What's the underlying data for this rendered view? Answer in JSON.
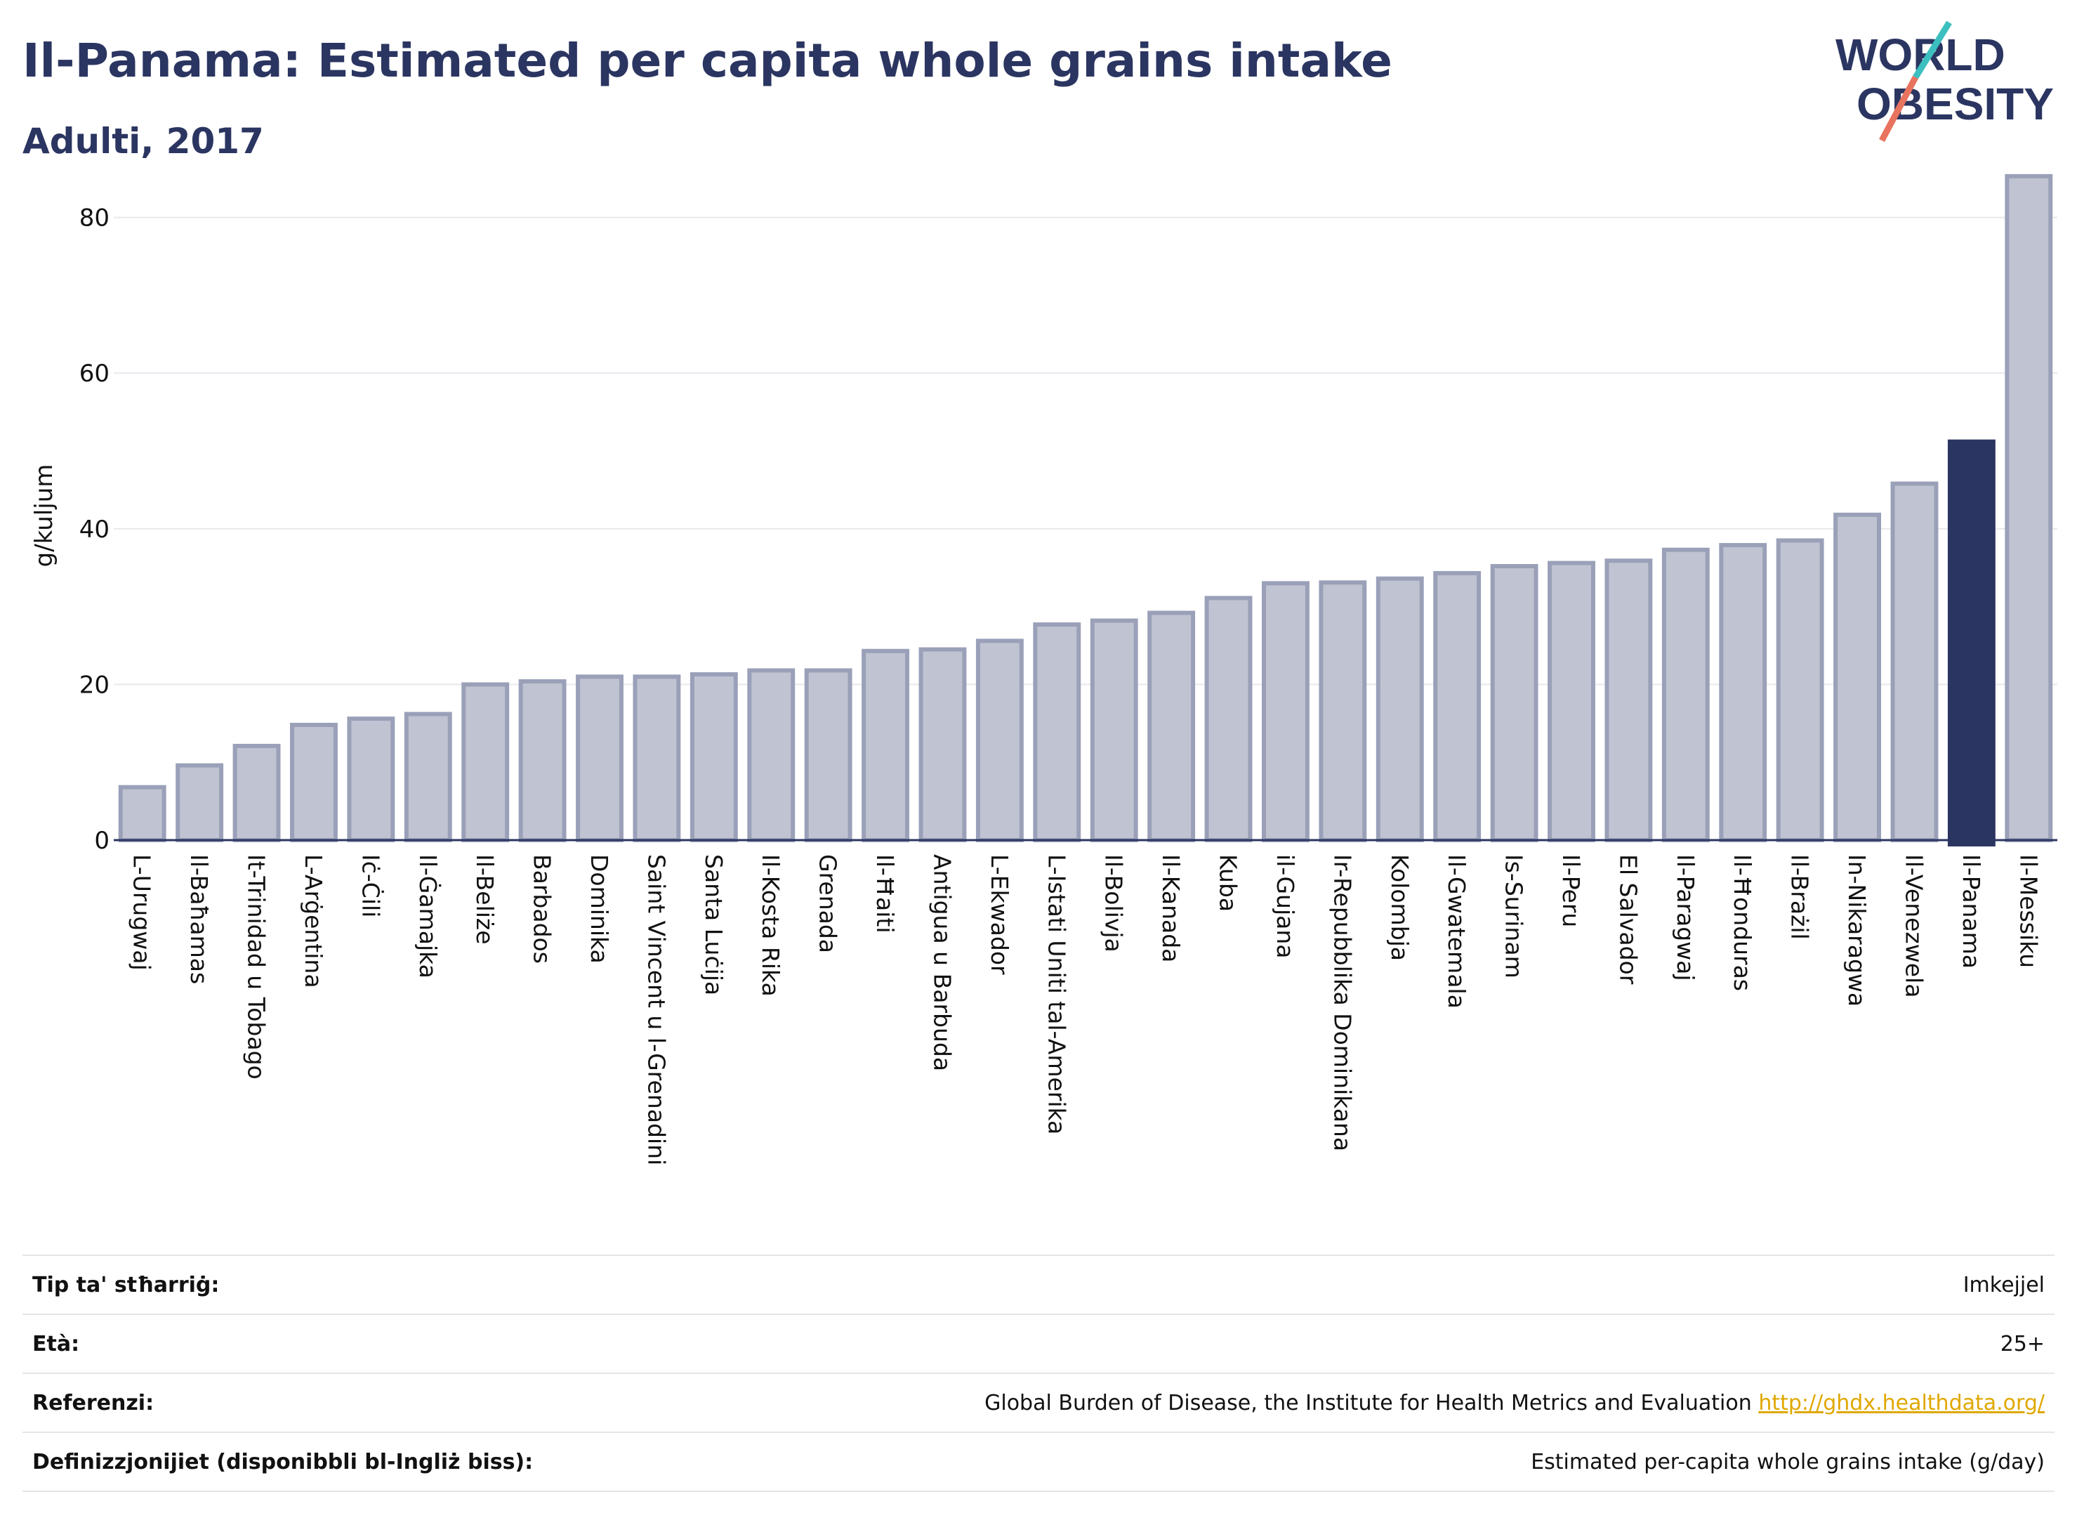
{
  "header": {
    "title": "Il-Panama: Estimated per capita whole grains intake",
    "subtitle": "Adulti, 2017",
    "logo_text_1": "WORLD",
    "logo_text_2": "OBESITY"
  },
  "colors": {
    "bar": "#c0c3d1",
    "bar_stroke": "#9aa0b8",
    "highlight": "#2b3561",
    "grid": "#e8e8ee",
    "text": "#2b3561",
    "link": "#e0a800"
  },
  "chart_data": {
    "type": "bar",
    "title": "Il-Panama: Estimated per capita whole grains intake",
    "subtitle": "Adulti, 2017",
    "ylabel": "g/kuljum",
    "xlabel": "",
    "ylim": [
      0,
      87
    ],
    "yticks": [
      0,
      20,
      40,
      60,
      80
    ],
    "grid": true,
    "highlight": "Il-Panama",
    "categories": [
      "L-Urugwaj",
      "Il-Baħamas",
      "It-Trinidad u Tobago",
      "L-Arġentina",
      "Iċ-Ċili",
      "Il-Ġamajka",
      "Il-Beliże",
      "Barbados",
      "Dominika",
      "Saint Vincent u l-Grenadini",
      "Santa Luċija",
      "Il-Kosta Rika",
      "Grenada",
      "Il-Ħaiti",
      "Antigua u Barbuda",
      "L-Ekwador",
      "L-Istati Uniti tal-Amerika",
      "Il-Bolivja",
      "Il-Kanada",
      "Kuba",
      "il-Gujana",
      "Ir-Repubblika Dominikana",
      "Kolombja",
      "Il-Gwatemala",
      "Is-Surinam",
      "Il-Peru",
      "El Salvador",
      "Il-Paragwaj",
      "Il-Ħonduras",
      "Il-Brażil",
      "In-Nikaragwa",
      "Il-Venezwela",
      "Il-Panama",
      "Il-Messiku"
    ],
    "values": [
      6.8,
      9.6,
      12.1,
      14.8,
      15.6,
      16.2,
      20.0,
      20.4,
      21.0,
      21.0,
      21.3,
      21.8,
      21.8,
      24.3,
      24.5,
      25.6,
      27.7,
      28.2,
      29.2,
      31.1,
      33.0,
      33.1,
      33.6,
      34.3,
      35.2,
      35.6,
      35.9,
      37.3,
      37.9,
      38.5,
      41.8,
      45.8,
      51.2,
      85.3
    ]
  },
  "footer": {
    "rows": [
      {
        "label": "Tip ta' stħarriġ:",
        "value": "Imkejjel",
        "link": ""
      },
      {
        "label": "Età:",
        "value": "25+",
        "link": ""
      },
      {
        "label": "Referenzi:",
        "value": "Global Burden of Disease, the Institute for Health Metrics and Evaluation",
        "link": "http://ghdx.healthdata.org/"
      },
      {
        "label": "Definizzjonijiet (disponibbli bl-Ingliż biss):",
        "value": "Estimated per-capita whole grains intake (g/day)",
        "link": ""
      }
    ]
  }
}
